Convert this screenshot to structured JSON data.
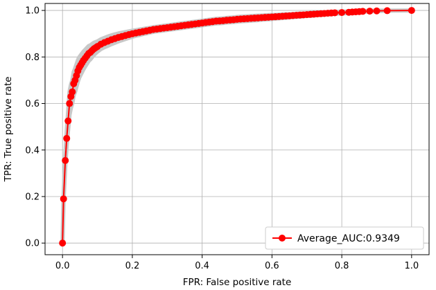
{
  "chart_data": {
    "type": "line",
    "title": "",
    "xlabel": "FPR: False positive rate",
    "ylabel": "TPR: True positive rate",
    "xlim": [
      -0.05,
      1.05
    ],
    "ylim": [
      -0.05,
      1.03
    ],
    "xticks": [
      0.0,
      0.2,
      0.4,
      0.6,
      0.8,
      1.0
    ],
    "xtick_labels": [
      "0.0",
      "0.2",
      "0.4",
      "0.6",
      "0.8",
      "1.0"
    ],
    "yticks": [
      0.0,
      0.2,
      0.4,
      0.6,
      0.8,
      1.0
    ],
    "ytick_labels": [
      "0.0",
      "0.2",
      "0.4",
      "0.6",
      "0.8",
      "1.0"
    ],
    "grid": true,
    "legend_position": "bottom-right",
    "series": [
      {
        "name": "Average_AUC:0.9349",
        "color": "#ff0000",
        "marker": "circle",
        "x": [
          0.0,
          0.003,
          0.008,
          0.012,
          0.016,
          0.02,
          0.024,
          0.028,
          0.032,
          0.036,
          0.04,
          0.044,
          0.048,
          0.052,
          0.056,
          0.06,
          0.065,
          0.07,
          0.075,
          0.08,
          0.085,
          0.09,
          0.095,
          0.1,
          0.11,
          0.12,
          0.13,
          0.14,
          0.15,
          0.16,
          0.17,
          0.18,
          0.19,
          0.2,
          0.21,
          0.22,
          0.23,
          0.24,
          0.25,
          0.26,
          0.27,
          0.28,
          0.29,
          0.3,
          0.31,
          0.32,
          0.33,
          0.34,
          0.35,
          0.36,
          0.37,
          0.38,
          0.39,
          0.4,
          0.41,
          0.42,
          0.43,
          0.44,
          0.45,
          0.46,
          0.47,
          0.48,
          0.49,
          0.5,
          0.51,
          0.52,
          0.53,
          0.54,
          0.55,
          0.56,
          0.57,
          0.58,
          0.59,
          0.6,
          0.61,
          0.62,
          0.63,
          0.64,
          0.65,
          0.66,
          0.67,
          0.68,
          0.69,
          0.7,
          0.71,
          0.72,
          0.73,
          0.74,
          0.75,
          0.76,
          0.77,
          0.78,
          0.8,
          0.82,
          0.83,
          0.84,
          0.85,
          0.86,
          0.88,
          0.9,
          0.93,
          1.0
        ],
        "y": [
          0.0,
          0.19,
          0.355,
          0.45,
          0.525,
          0.6,
          0.63,
          0.65,
          0.685,
          0.7,
          0.72,
          0.74,
          0.755,
          0.765,
          0.775,
          0.785,
          0.795,
          0.805,
          0.815,
          0.82,
          0.828,
          0.835,
          0.84,
          0.845,
          0.855,
          0.862,
          0.868,
          0.874,
          0.879,
          0.884,
          0.888,
          0.892,
          0.896,
          0.9,
          0.903,
          0.906,
          0.909,
          0.912,
          0.915,
          0.918,
          0.92,
          0.922,
          0.924,
          0.926,
          0.928,
          0.93,
          0.932,
          0.934,
          0.936,
          0.938,
          0.94,
          0.942,
          0.944,
          0.946,
          0.948,
          0.95,
          0.952,
          0.954,
          0.955,
          0.956,
          0.958,
          0.959,
          0.96,
          0.962,
          0.963,
          0.964,
          0.965,
          0.966,
          0.967,
          0.968,
          0.969,
          0.97,
          0.971,
          0.972,
          0.973,
          0.974,
          0.975,
          0.976,
          0.977,
          0.978,
          0.979,
          0.98,
          0.981,
          0.982,
          0.983,
          0.984,
          0.985,
          0.986,
          0.987,
          0.988,
          0.989,
          0.99,
          0.991,
          0.992,
          0.993,
          0.994,
          0.995,
          0.996,
          0.997,
          0.998,
          0.999,
          1.0
        ]
      }
    ],
    "band": {
      "color": "#c8c8c8",
      "halfwidth": [
        0.0,
        0.01,
        0.02,
        0.03,
        0.04,
        0.05,
        0.05,
        0.05,
        0.05,
        0.05,
        0.048,
        0.046,
        0.044,
        0.042,
        0.04,
        0.038,
        0.036,
        0.034,
        0.032,
        0.03,
        0.028,
        0.026,
        0.024,
        0.022,
        0.021,
        0.02,
        0.02,
        0.019,
        0.018,
        0.017,
        0.016,
        0.015,
        0.014,
        0.013,
        0.012,
        0.012,
        0.011,
        0.011,
        0.01,
        0.01,
        0.01,
        0.01,
        0.01,
        0.01,
        0.01,
        0.01,
        0.01,
        0.01,
        0.01,
        0.01,
        0.01,
        0.01,
        0.01,
        0.01,
        0.01,
        0.01,
        0.01,
        0.01,
        0.01,
        0.01,
        0.01,
        0.01,
        0.01,
        0.01,
        0.01,
        0.01,
        0.01,
        0.01,
        0.01,
        0.01,
        0.009,
        0.009,
        0.009,
        0.009,
        0.008,
        0.008,
        0.008,
        0.008,
        0.007,
        0.007,
        0.007,
        0.007,
        0.006,
        0.006,
        0.006,
        0.006,
        0.005,
        0.005,
        0.005,
        0.005,
        0.004,
        0.004,
        0.004,
        0.003,
        0.003,
        0.003,
        0.002,
        0.002,
        0.001,
        0.001,
        0.0,
        0.0
      ]
    }
  }
}
